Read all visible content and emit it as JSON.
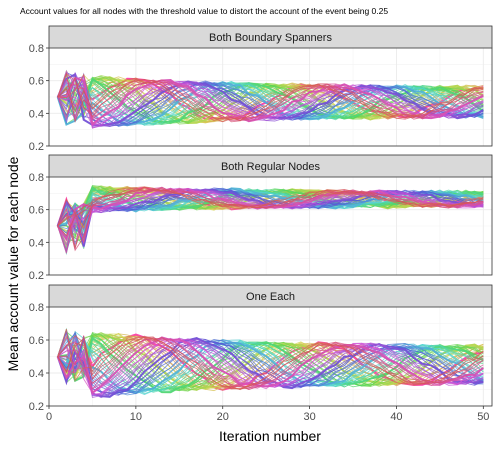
{
  "chart_data": {
    "type": "line",
    "title": "Account values for all nodes with the threshold value to distort the account of the event being 0.25",
    "xlabel": "Iteration number",
    "ylabel": "Mean account value for each node",
    "xlim": [
      0,
      51
    ],
    "ylim": [
      0.2,
      0.8
    ],
    "xticks": [
      "0",
      "10",
      "20",
      "30",
      "40",
      "50"
    ],
    "yticks": [
      "0.2",
      "0.4",
      "0.6",
      "0.8"
    ],
    "grid": true,
    "legend": "none",
    "line_count_per_panel": 60,
    "iterations": [
      1,
      50
    ],
    "panels": [
      {
        "label": "Both Boundary Spanners",
        "start_value": 0.5,
        "final_range": [
          0.43,
          0.5
        ],
        "amplitude": 0.15,
        "center": 0.47,
        "period": 20
      },
      {
        "label": "Both Regular Nodes",
        "start_value": 0.5,
        "final_range": [
          0.6,
          0.72
        ],
        "amplitude": 0.07,
        "center": 0.665,
        "period": 22
      },
      {
        "label": "One Each",
        "start_value": 0.5,
        "final_range": [
          0.3,
          0.6
        ],
        "amplitude": 0.19,
        "center": 0.45,
        "period": 21
      }
    ],
    "colors": {
      "low_hue_start": "#F8766D",
      "mid": "#00BA38",
      "high": "#619CFF",
      "accent": "#FF3DA8"
    }
  }
}
